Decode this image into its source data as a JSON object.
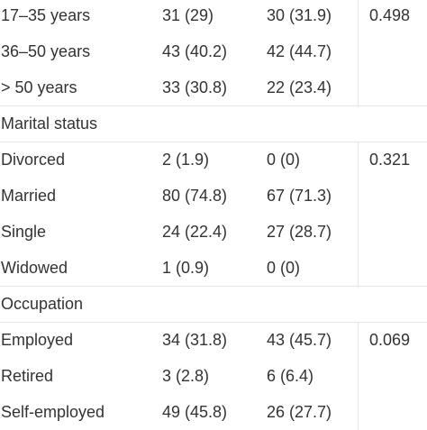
{
  "table": {
    "rows": [
      {
        "c1": "17–35 years",
        "c2": "31 (29)",
        "c3": "30 (31.9)",
        "c4": "0.498"
      },
      {
        "c1": "36–50 years",
        "c2": "43 (40.2)",
        "c3": "42 (44.7)",
        "c4": ""
      },
      {
        "c1": "> 50 years",
        "c2": "33 (30.8)",
        "c3": "22 (23.4)",
        "c4": ""
      },
      {
        "c1": "Marital status",
        "c2": "",
        "c3": "",
        "c4": ""
      },
      {
        "c1": "Divorced",
        "c2": "2 (1.9)",
        "c3": "0 (0)",
        "c4": "0.321"
      },
      {
        "c1": "Married",
        "c2": "80 (74.8)",
        "c3": "67 (71.3)",
        "c4": ""
      },
      {
        "c1": "Single",
        "c2": "24 (22.4)",
        "c3": "27 (28.7)",
        "c4": ""
      },
      {
        "c1": "Widowed",
        "c2": "1 (0.9)",
        "c3": "0 (0)",
        "c4": ""
      },
      {
        "c1": "Occupation",
        "c2": "",
        "c3": "",
        "c4": ""
      },
      {
        "c1": "Employed",
        "c2": "34 (31.8)",
        "c3": "43 (45.7)",
        "c4": "0.069"
      },
      {
        "c1": "Retired",
        "c2": "3 (2.8)",
        "c3": "6 (6.4)",
        "c4": ""
      },
      {
        "c1": "Self-employed",
        "c2": "49 (45.8)",
        "c3": "26 (27.7)",
        "c4": ""
      }
    ]
  }
}
